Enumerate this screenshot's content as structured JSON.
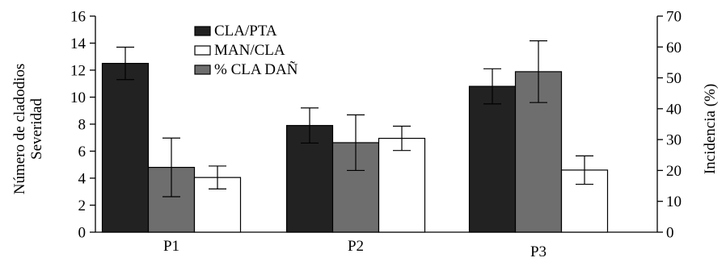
{
  "chart_data": {
    "type": "bar",
    "categories": [
      "P1",
      "P2",
      "P3"
    ],
    "series": [
      {
        "name": "CLA/PTA",
        "axis": "left",
        "color": "#222222",
        "values": [
          12.5,
          7.9,
          10.8
        ],
        "errors": [
          1.2,
          1.3,
          1.3
        ]
      },
      {
        "name": "% CLA  DAÑ",
        "axis": "right",
        "color": "#6e6e6e",
        "values": [
          21,
          29,
          52
        ],
        "errors": [
          9.5,
          9,
          10
        ]
      },
      {
        "name": "MAN/CLA",
        "axis": "left",
        "color": "#ffffff",
        "values": [
          4.05,
          6.95,
          4.6
        ],
        "errors": [
          0.85,
          0.9,
          1.05
        ]
      }
    ],
    "legend_order": [
      "CLA/PTA",
      "MAN/CLA",
      "% CLA  DAÑ"
    ],
    "legend_position": "top-center",
    "ylabel_left_lines": [
      "Número de cladodios",
      "Severidad"
    ],
    "ylabel_right": "Incidencia (%)",
    "ylim_left": [
      0,
      16
    ],
    "yticks_left": [
      0,
      2,
      4,
      6,
      8,
      10,
      12,
      14,
      16
    ],
    "ylim_right": [
      0,
      70
    ],
    "yticks_right": [
      0,
      10,
      20,
      30,
      40,
      50,
      60,
      70
    ],
    "grid": false
  }
}
